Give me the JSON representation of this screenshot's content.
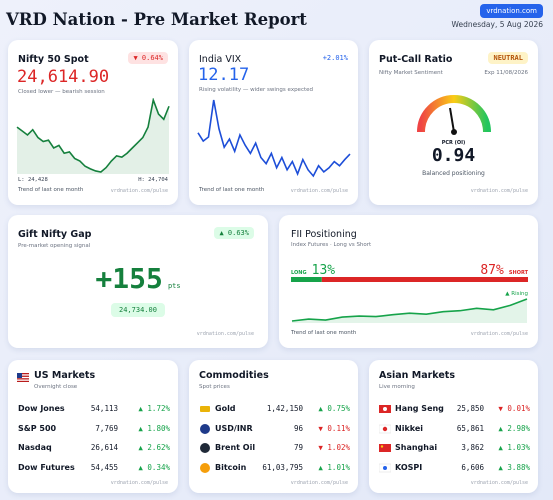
{
  "header": {
    "title": "VRD Nation - Pre Market Report",
    "site": "vrdnation.com",
    "date": "Wednesday, 5 Aug 2026"
  },
  "nifty": {
    "title": "Nifty 50 Spot",
    "change": "▼ 0.64%",
    "value": "24,614.90",
    "note": "Closed lower — bearish session",
    "low_label": "L:",
    "low": "24,428",
    "high_label": "H:",
    "high": "24,704",
    "footer": "Trend of last one month",
    "watermark": "vrdnation.com/pulse",
    "color": "#15803d",
    "trend": [
      24600,
      24585,
      24570,
      24590,
      24560,
      24545,
      24550,
      24520,
      24530,
      24500,
      24505,
      24480,
      24470,
      24450,
      24440,
      24432,
      24428,
      24445,
      24470,
      24490,
      24485,
      24500,
      24520,
      24540,
      24560,
      24600,
      24704,
      24650,
      24630,
      24680
    ]
  },
  "vix": {
    "title": "India VIX",
    "change": "+2.01%",
    "value": "12.17",
    "note": "Rising volatility — wider swings expected",
    "footer": "Trend of last one month",
    "watermark": "vrdnation.com/pulse",
    "color": "#1d4ed8",
    "trend": [
      13.2,
      12.8,
      13.0,
      14.8,
      13.4,
      12.5,
      12.9,
      12.3,
      13.1,
      12.6,
      12.2,
      12.7,
      12.0,
      11.7,
      12.2,
      11.5,
      12.0,
      11.4,
      11.8,
      11.2,
      11.9,
      11.4,
      11.1,
      11.6,
      11.3,
      11.5,
      11.8,
      11.6,
      11.9,
      12.17
    ]
  },
  "pcr": {
    "title": "Put-Call Ratio",
    "badge": "NEUTRAL",
    "subtitle": "Nifty Market Sentiment",
    "expiry": "Exp 11/08/2026",
    "gauge_label": "PCR (OI)",
    "value": 0.94,
    "note": "Balanced positioning",
    "watermark": "vrdnation.com/pulse"
  },
  "gift": {
    "title": "Gift Nifty Gap",
    "change": "▲ 0.63%",
    "subtitle": "Pre-market opening signal",
    "value": "+155",
    "unit": "pts",
    "level": "24,734.00",
    "watermark": "vrdnation.com/pulse"
  },
  "fii": {
    "title": "FII Positioning",
    "subtitle": "Index Futures · Long vs Short",
    "long_label": "LONG",
    "long": 13,
    "long_text": "13%",
    "short_label": "SHORT",
    "short": 87,
    "short_text": "87%",
    "trend_label": "▲ Rising",
    "footer": "Trend of last one month",
    "watermark": "vrdnation.com/pulse",
    "color": "#16a34a",
    "trend": [
      10,
      10.4,
      10.2,
      10.8,
      11,
      10.9,
      11.3,
      11.6,
      11.4,
      11.9,
      12.1,
      12.6,
      12.3,
      13.2,
      14.5
    ]
  },
  "us": {
    "title": "US Markets",
    "subtitle": "Overnight close",
    "watermark": "vrdnation.com/pulse",
    "rows": [
      {
        "name": "Dow Jones",
        "price": "54,113",
        "change": "▲ 1.72%",
        "color": "#16a34a"
      },
      {
        "name": "S&P 500",
        "price": "7,769",
        "change": "▲ 1.80%",
        "color": "#16a34a"
      },
      {
        "name": "Nasdaq",
        "price": "26,614",
        "change": "▲ 2.62%",
        "color": "#16a34a"
      },
      {
        "name": "Dow Futures",
        "price": "54,455",
        "change": "▲ 0.34%",
        "color": "#16a34a"
      }
    ]
  },
  "commodities": {
    "title": "Commodities",
    "subtitle": "Spot prices",
    "watermark": "vrdnation.com/pulse",
    "rows": [
      {
        "name": "Gold",
        "price": "1,42,150",
        "change": "▲ 0.75%",
        "color": "#16a34a"
      },
      {
        "name": "USD/INR",
        "price": "96",
        "change": "▼ 0.11%",
        "color": "#dc2626"
      },
      {
        "name": "Brent Oil",
        "price": "79",
        "change": "▼ 1.02%",
        "color": "#dc2626"
      },
      {
        "name": "Bitcoin",
        "price": "61,03,795",
        "change": "▲ 1.01%",
        "color": "#16a34a"
      }
    ]
  },
  "asia": {
    "title": "Asian Markets",
    "subtitle": "Live morning",
    "watermark": "vrdnation.com/pulse",
    "rows": [
      {
        "name": "Hang Seng",
        "price": "25,850",
        "change": "▼ 0.01%",
        "color": "#dc2626"
      },
      {
        "name": "Nikkei",
        "price": "65,861",
        "change": "▲ 2.98%",
        "color": "#16a34a"
      },
      {
        "name": "Shanghai",
        "price": "3,862",
        "change": "▲ 1.03%",
        "color": "#16a34a"
      },
      {
        "name": "KOSPI",
        "price": "6,606",
        "change": "▲ 3.88%",
        "color": "#16a34a"
      }
    ]
  }
}
